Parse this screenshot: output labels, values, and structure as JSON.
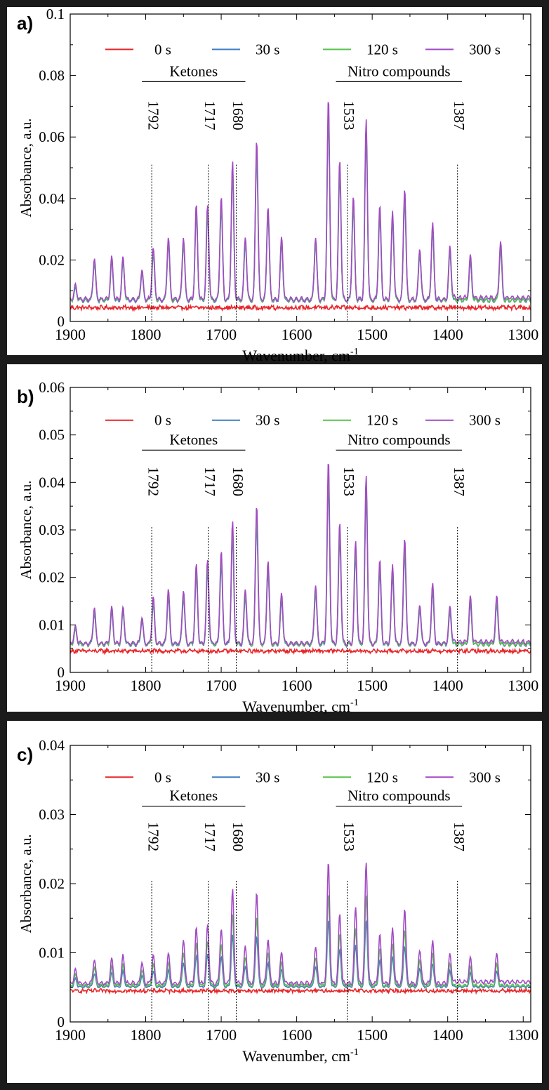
{
  "figure": {
    "background": "#1b1b1b",
    "panel_background": "#ffffff"
  },
  "chart_data": [
    {
      "type": "line",
      "panel_label": "a)",
      "xlabel": "Wavenumber, cm",
      "xlabel_superscript": "-1",
      "ylabel": "Absorbance, a.u.",
      "xlim": [
        1900,
        1290
      ],
      "ylim": [
        0,
        0.1
      ],
      "x_ticks": [
        1900,
        1800,
        1700,
        1600,
        1500,
        1400,
        1300
      ],
      "y_ticks": [
        0,
        0.02,
        0.04,
        0.06,
        0.08,
        0.1
      ],
      "y_tick_labels": [
        "0",
        "0.02",
        "0.04",
        "0.06",
        "0.08",
        "0.1"
      ],
      "grid": false,
      "legend": {
        "placement": "top",
        "entries": [
          "0 s",
          "30 s",
          "120 s",
          "300 s"
        ]
      },
      "groups": [
        {
          "label": "Ketones",
          "x_start": 1805,
          "x_end": 1668
        },
        {
          "label": "Nitro compounds",
          "x_start": 1548,
          "x_end": 1381
        }
      ],
      "marker_lines": [
        {
          "label": "1792",
          "x": 1792
        },
        {
          "label": "1717",
          "x": 1717
        },
        {
          "label": "1680",
          "x": 1680
        },
        {
          "label": "1533",
          "x": 1533
        },
        {
          "label": "1387",
          "x": 1387
        }
      ],
      "baseline": 0.0045,
      "peaks": [
        {
          "x": 1893,
          "y": 0.009
        },
        {
          "x": 1868,
          "y": 0.018
        },
        {
          "x": 1845,
          "y": 0.018
        },
        {
          "x": 1830,
          "y": 0.018
        },
        {
          "x": 1805,
          "y": 0.014
        },
        {
          "x": 1790,
          "y": 0.021
        },
        {
          "x": 1770,
          "y": 0.025
        },
        {
          "x": 1750,
          "y": 0.025
        },
        {
          "x": 1733,
          "y": 0.035
        },
        {
          "x": 1718,
          "y": 0.035
        },
        {
          "x": 1700,
          "y": 0.038
        },
        {
          "x": 1685,
          "y": 0.049
        },
        {
          "x": 1668,
          "y": 0.025
        },
        {
          "x": 1653,
          "y": 0.057
        },
        {
          "x": 1638,
          "y": 0.035
        },
        {
          "x": 1620,
          "y": 0.025
        },
        {
          "x": 1575,
          "y": 0.025
        },
        {
          "x": 1558,
          "y": 0.07
        },
        {
          "x": 1543,
          "y": 0.05
        },
        {
          "x": 1525,
          "y": 0.038
        },
        {
          "x": 1508,
          "y": 0.063
        },
        {
          "x": 1490,
          "y": 0.035
        },
        {
          "x": 1473,
          "y": 0.033
        },
        {
          "x": 1457,
          "y": 0.041
        },
        {
          "x": 1437,
          "y": 0.021
        },
        {
          "x": 1420,
          "y": 0.029
        },
        {
          "x": 1397,
          "y": 0.021
        },
        {
          "x": 1370,
          "y": 0.018
        },
        {
          "x": 1330,
          "y": 0.023
        }
      ],
      "series": [
        {
          "name": "0 s",
          "color": "#e8262a",
          "level": 0.0
        },
        {
          "name": "30 s",
          "color": "#3f7fc4",
          "level": 0.91
        },
        {
          "name": "120 s",
          "color": "#57c44c",
          "level": 0.95
        },
        {
          "name": "300 s",
          "color": "#a24bc4",
          "level": 1.0
        }
      ]
    },
    {
      "type": "line",
      "panel_label": "b)",
      "xlabel": "Wavenumber, cm",
      "xlabel_superscript": "-1",
      "ylabel": "Absorbance, a.u.",
      "xlim": [
        1900,
        1290
      ],
      "ylim": [
        0,
        0.06
      ],
      "x_ticks": [
        1900,
        1800,
        1700,
        1600,
        1500,
        1400,
        1300
      ],
      "y_ticks": [
        0,
        0.01,
        0.02,
        0.03,
        0.04,
        0.05,
        0.06
      ],
      "y_tick_labels": [
        "0",
        "0.01",
        "0.02",
        "0.03",
        "0.04",
        "0.05",
        "0.06"
      ],
      "grid": false,
      "legend": {
        "placement": "top",
        "entries": [
          "0 s",
          "30 s",
          "120 s",
          "300 s"
        ]
      },
      "groups": [
        {
          "label": "Ketones",
          "x_start": 1805,
          "x_end": 1668
        },
        {
          "label": "Nitro compounds",
          "x_start": 1548,
          "x_end": 1381
        }
      ],
      "marker_lines": [
        {
          "label": "1792",
          "x": 1792
        },
        {
          "label": "1717",
          "x": 1717
        },
        {
          "label": "1680",
          "x": 1680
        },
        {
          "label": "1533",
          "x": 1533
        },
        {
          "label": "1387",
          "x": 1387
        }
      ],
      "baseline": 0.0045,
      "peaks": [
        {
          "x": 1893,
          "y": 0.008
        },
        {
          "x": 1868,
          "y": 0.012
        },
        {
          "x": 1845,
          "y": 0.012
        },
        {
          "x": 1830,
          "y": 0.012
        },
        {
          "x": 1805,
          "y": 0.01
        },
        {
          "x": 1790,
          "y": 0.014
        },
        {
          "x": 1770,
          "y": 0.016
        },
        {
          "x": 1750,
          "y": 0.016
        },
        {
          "x": 1733,
          "y": 0.021
        },
        {
          "x": 1718,
          "y": 0.022
        },
        {
          "x": 1700,
          "y": 0.024
        },
        {
          "x": 1685,
          "y": 0.03
        },
        {
          "x": 1668,
          "y": 0.016
        },
        {
          "x": 1653,
          "y": 0.034
        },
        {
          "x": 1638,
          "y": 0.022
        },
        {
          "x": 1620,
          "y": 0.015
        },
        {
          "x": 1575,
          "y": 0.017
        },
        {
          "x": 1558,
          "y": 0.043
        },
        {
          "x": 1543,
          "y": 0.03
        },
        {
          "x": 1522,
          "y": 0.026
        },
        {
          "x": 1508,
          "y": 0.04
        },
        {
          "x": 1490,
          "y": 0.022
        },
        {
          "x": 1473,
          "y": 0.021
        },
        {
          "x": 1457,
          "y": 0.027
        },
        {
          "x": 1437,
          "y": 0.013
        },
        {
          "x": 1420,
          "y": 0.017
        },
        {
          "x": 1397,
          "y": 0.012
        },
        {
          "x": 1370,
          "y": 0.014
        },
        {
          "x": 1335,
          "y": 0.014
        }
      ],
      "series": [
        {
          "name": "0 s",
          "color": "#e8262a",
          "level": 0.0
        },
        {
          "name": "30 s",
          "color": "#3f7fc4",
          "level": 0.88
        },
        {
          "name": "120 s",
          "color": "#57c44c",
          "level": 0.94
        },
        {
          "name": "300 s",
          "color": "#a24bc4",
          "level": 1.0
        }
      ]
    },
    {
      "type": "line",
      "panel_label": "c)",
      "xlabel": "Wavenumber, cm",
      "xlabel_superscript": "-1",
      "ylabel": "Absorbance, a.u.",
      "xlim": [
        1900,
        1290
      ],
      "ylim": [
        0,
        0.04
      ],
      "x_ticks": [
        1900,
        1800,
        1700,
        1600,
        1500,
        1400,
        1300
      ],
      "y_ticks": [
        0,
        0.01,
        0.02,
        0.03,
        0.04
      ],
      "y_tick_labels": [
        "0",
        "0.01",
        "0.02",
        "0.03",
        "0.04"
      ],
      "grid": false,
      "legend": {
        "placement": "top",
        "entries": [
          "0 s",
          "30 s",
          "120 s",
          "300 s"
        ]
      },
      "groups": [
        {
          "label": "Ketones",
          "x_start": 1805,
          "x_end": 1668
        },
        {
          "label": "Nitro compounds",
          "x_start": 1548,
          "x_end": 1381
        }
      ],
      "marker_lines": [
        {
          "label": "1792",
          "x": 1792
        },
        {
          "label": "1717",
          "x": 1717
        },
        {
          "label": "1680",
          "x": 1680
        },
        {
          "label": "1533",
          "x": 1533
        },
        {
          "label": "1387",
          "x": 1387
        }
      ],
      "baseline": 0.0045,
      "peaks": [
        {
          "x": 1893,
          "y": 0.0065
        },
        {
          "x": 1868,
          "y": 0.008
        },
        {
          "x": 1845,
          "y": 0.008
        },
        {
          "x": 1830,
          "y": 0.0085
        },
        {
          "x": 1805,
          "y": 0.0075
        },
        {
          "x": 1790,
          "y": 0.0085
        },
        {
          "x": 1770,
          "y": 0.009
        },
        {
          "x": 1750,
          "y": 0.011
        },
        {
          "x": 1733,
          "y": 0.0125
        },
        {
          "x": 1718,
          "y": 0.013
        },
        {
          "x": 1700,
          "y": 0.0125
        },
        {
          "x": 1685,
          "y": 0.018
        },
        {
          "x": 1668,
          "y": 0.01
        },
        {
          "x": 1653,
          "y": 0.018
        },
        {
          "x": 1638,
          "y": 0.011
        },
        {
          "x": 1620,
          "y": 0.009
        },
        {
          "x": 1575,
          "y": 0.01
        },
        {
          "x": 1558,
          "y": 0.022
        },
        {
          "x": 1543,
          "y": 0.0145
        },
        {
          "x": 1522,
          "y": 0.0155
        },
        {
          "x": 1508,
          "y": 0.022
        },
        {
          "x": 1490,
          "y": 0.0115
        },
        {
          "x": 1473,
          "y": 0.0125
        },
        {
          "x": 1457,
          "y": 0.0155
        },
        {
          "x": 1437,
          "y": 0.0095
        },
        {
          "x": 1420,
          "y": 0.0105
        },
        {
          "x": 1397,
          "y": 0.0085
        },
        {
          "x": 1370,
          "y": 0.008
        },
        {
          "x": 1335,
          "y": 0.0085
        }
      ],
      "series": [
        {
          "name": "0 s",
          "color": "#e8262a",
          "level": 0.0
        },
        {
          "name": "30 s",
          "color": "#3f7fc4",
          "level": 0.55
        },
        {
          "name": "120 s",
          "color": "#57c44c",
          "level": 0.75
        },
        {
          "name": "300 s",
          "color": "#a24bc4",
          "level": 1.0
        }
      ]
    }
  ]
}
